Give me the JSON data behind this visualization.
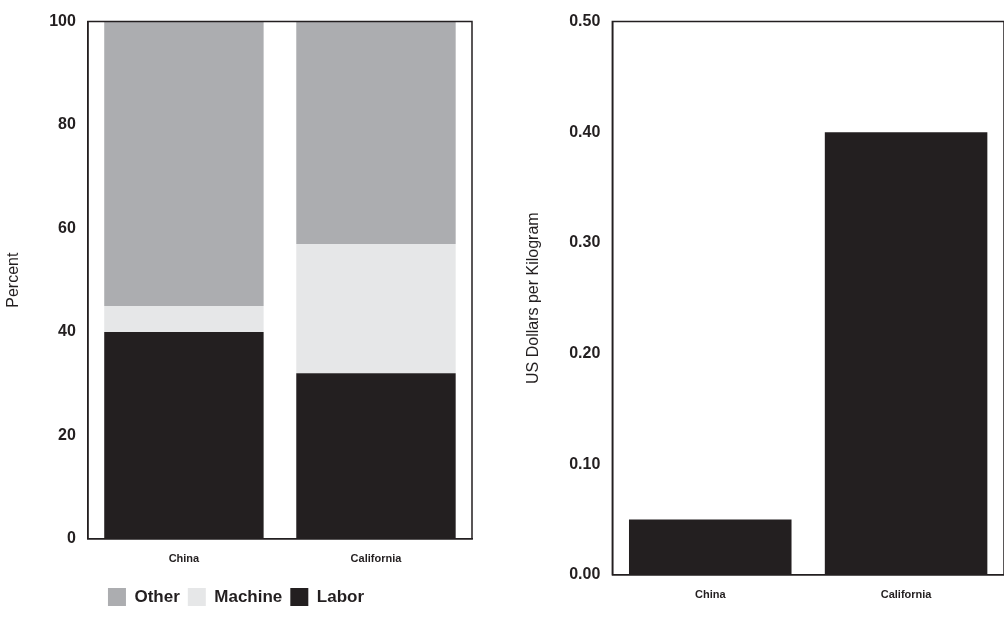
{
  "chart_data": [
    {
      "type": "bar",
      "categories": [
        "China",
        "California"
      ],
      "stacked": true,
      "ylabel": "Percent",
      "ylim": [
        0,
        100
      ],
      "yticks": [
        0,
        20,
        40,
        60,
        80,
        100
      ],
      "grid": false,
      "legend": "bottom",
      "series": [
        {
          "name": "Labor",
          "color": "#231f20",
          "values": [
            40,
            32
          ]
        },
        {
          "name": "Machine",
          "color": "#e6e7e8",
          "values": [
            5,
            25
          ]
        },
        {
          "name": "Other",
          "color": "#acadb0",
          "values": [
            55,
            43
          ]
        }
      ]
    },
    {
      "type": "bar",
      "categories": [
        "China",
        "California"
      ],
      "values": [
        0.05,
        0.4
      ],
      "color": "#231f20",
      "ylabel": "US Dollars per Kilogram",
      "ylim": [
        0,
        0.5
      ],
      "yticks": [
        {
          "value": 0,
          "label": "0.00"
        },
        {
          "value": 0.1,
          "label": "0.10"
        },
        {
          "value": 0.2,
          "label": "0.20"
        },
        {
          "value": 0.3,
          "label": "0.30"
        },
        {
          "value": 0.4,
          "label": "0.40"
        },
        {
          "value": 0.5,
          "label": "0.50"
        }
      ],
      "grid": false
    }
  ]
}
